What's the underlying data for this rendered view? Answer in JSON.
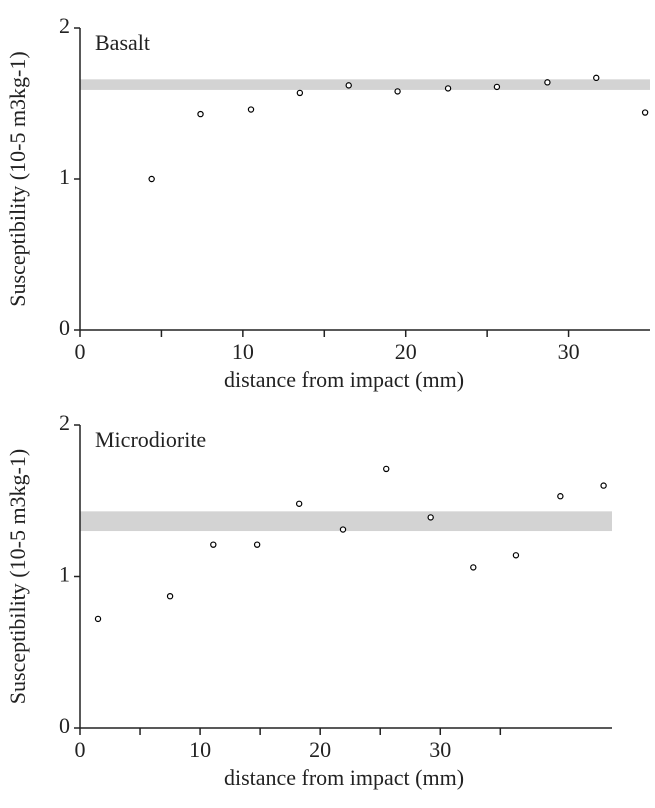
{
  "chart_data": [
    {
      "type": "scatter",
      "annotation": "Basalt",
      "xlabel": "distance from impact (mm)",
      "ylabel": "Susceptibility (10-5 m3kg-1)",
      "x": [
        4.4,
        7.4,
        10.5,
        13.5,
        16.5,
        19.5,
        22.6,
        25.6,
        28.7,
        31.7,
        34.7
      ],
      "y": [
        1.0,
        1.43,
        1.46,
        1.57,
        1.62,
        1.58,
        1.6,
        1.61,
        1.64,
        1.67,
        1.44
      ],
      "band": [
        1.59,
        1.66
      ],
      "band_color": "#d3d3d3",
      "color": "#000000",
      "xlim": [
        0,
        35.0
      ],
      "ylim": [
        0,
        2
      ],
      "xticks": [
        0,
        10,
        20,
        30
      ],
      "xminorticks": [
        5,
        15,
        25
      ],
      "yticks": [
        0,
        1,
        2
      ]
    },
    {
      "type": "scatter",
      "annotation": "Microdiorite",
      "xlabel": "distance from impact (mm)",
      "ylabel": "Susceptibility (10-5 m3kg-1)",
      "x": [
        1.5,
        7.5,
        11.1,
        14.75,
        18.25,
        21.9,
        25.5,
        29.2,
        32.75,
        36.3,
        40.0,
        43.6
      ],
      "y": [
        0.72,
        0.87,
        1.21,
        1.21,
        1.48,
        1.31,
        1.71,
        1.39,
        1.06,
        1.14,
        1.53,
        1.6
      ],
      "band": [
        1.3,
        1.43
      ],
      "band_color": "#d3d3d3",
      "color": "#000000",
      "xlim": [
        0,
        44.3
      ],
      "ylim": [
        0,
        2
      ],
      "xticks": [
        0,
        10,
        20,
        30
      ],
      "xminorticks": [
        5,
        15,
        25,
        35
      ],
      "yticks": [
        0,
        1,
        2
      ]
    }
  ]
}
